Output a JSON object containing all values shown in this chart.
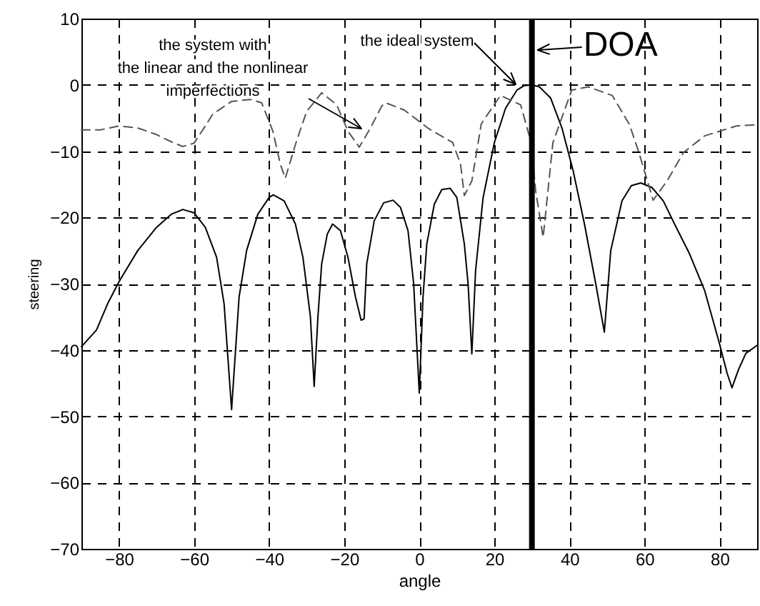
{
  "chart_data": {
    "type": "line",
    "xlabel": "angle",
    "ylabel": "steering",
    "xlim": [
      -90,
      90
    ],
    "ylim": [
      -70,
      10
    ],
    "xticks": [
      -80,
      -60,
      -40,
      -20,
      0,
      20,
      40,
      60,
      80
    ],
    "yticks": [
      -70,
      -60,
      -50,
      -40,
      -30,
      -20,
      -10,
      0,
      10
    ],
    "grid": true,
    "series": [
      {
        "color": "#000000",
        "line_style": "solid",
        "x": [
          -90,
          -86,
          -83,
          -80,
          -75,
          -70,
          -66,
          -63,
          -60,
          -57,
          -54,
          -52,
          -50,
          -48,
          -46,
          -43,
          -40,
          -38.9,
          -36,
          -33,
          -31,
          -29,
          -28,
          -27,
          -26,
          -24.5,
          -23.1,
          -21,
          -19,
          -17,
          -15.5,
          -14.7,
          -14,
          -12,
          -9.5,
          -7,
          -5,
          -3,
          -1.5,
          0,
          1,
          2,
          4,
          6,
          8.2,
          10,
          12,
          13,
          14,
          15,
          17,
          20,
          23,
          26,
          28,
          30,
          32,
          35,
          38,
          41,
          44,
          47,
          49.3,
          51,
          54,
          56.5,
          59,
          62,
          65,
          68,
          72,
          76,
          80,
          82,
          83.3,
          85,
          87,
          90
        ],
        "values": [
          -39.5,
          -37,
          -33,
          -29.7,
          -25,
          -21.5,
          -19.5,
          -18.8,
          -19.3,
          -21.5,
          -26,
          -33,
          -49,
          -32,
          -25,
          -19.5,
          -17,
          -16.6,
          -17.5,
          -21,
          -26,
          -35,
          -45.5,
          -35,
          -27,
          -22.5,
          -21,
          -22,
          -26,
          -32,
          -35.5,
          -35.3,
          -27,
          -20.5,
          -17.8,
          -17.4,
          -18.5,
          -22,
          -30,
          -46.5,
          -32,
          -24,
          -18,
          -15.8,
          -15.6,
          -17,
          -24,
          -30,
          -40.6,
          -28,
          -17,
          -8.7,
          -3.5,
          -0.8,
          -0.1,
          0,
          -0.3,
          -2,
          -6.5,
          -13,
          -21,
          -30,
          -37.3,
          -25,
          -17.5,
          -15.2,
          -14.8,
          -15.5,
          -17.5,
          -21,
          -25.5,
          -31,
          -39.1,
          -43.5,
          -45.7,
          -43,
          -40.5,
          -39.3
        ]
      },
      {
        "color": "#555555",
        "line_style": "dashed",
        "x": [
          -90,
          -85,
          -80,
          -75,
          -70,
          -66,
          -63,
          -60,
          -57,
          -55,
          -50,
          -45,
          -42,
          -39,
          -37,
          -35.7,
          -33,
          -30,
          -26,
          -22,
          -19,
          -16,
          -13,
          -10,
          -9,
          -4,
          2.5,
          8.9,
          11,
          12,
          14,
          16.5,
          21.6,
          27,
          29.8,
          31,
          33,
          35.6,
          40.6,
          45,
          51.4,
          56,
          58.5,
          62.3,
          66,
          70.4,
          76,
          84.5,
          90
        ],
        "values": [
          -6.8,
          -6.8,
          -6.2,
          -6.5,
          -7.5,
          -8.6,
          -9.3,
          -8.8,
          -6.2,
          -4.4,
          -2.5,
          -2.2,
          -2.7,
          -7,
          -12,
          -14.1,
          -9,
          -4,
          -1.2,
          -3,
          -7,
          -9.4,
          -6.5,
          -3.2,
          -2.7,
          -3.8,
          -6.6,
          -8.7,
          -12,
          -16.7,
          -14.5,
          -5.9,
          -1.6,
          -3,
          -8.7,
          -16,
          -23,
          -8.7,
          -0.8,
          -0.3,
          -1.6,
          -6,
          -10.2,
          -17.4,
          -14.5,
          -10.2,
          -7.7,
          -6.2,
          -6
        ]
      }
    ],
    "ref_lines": [
      {
        "axis": "x",
        "value": 30,
        "label": "DOA"
      }
    ],
    "annotations": [
      "the system with\nthe linear and the nonlinear\nimperfections",
      "the ideal system"
    ]
  }
}
